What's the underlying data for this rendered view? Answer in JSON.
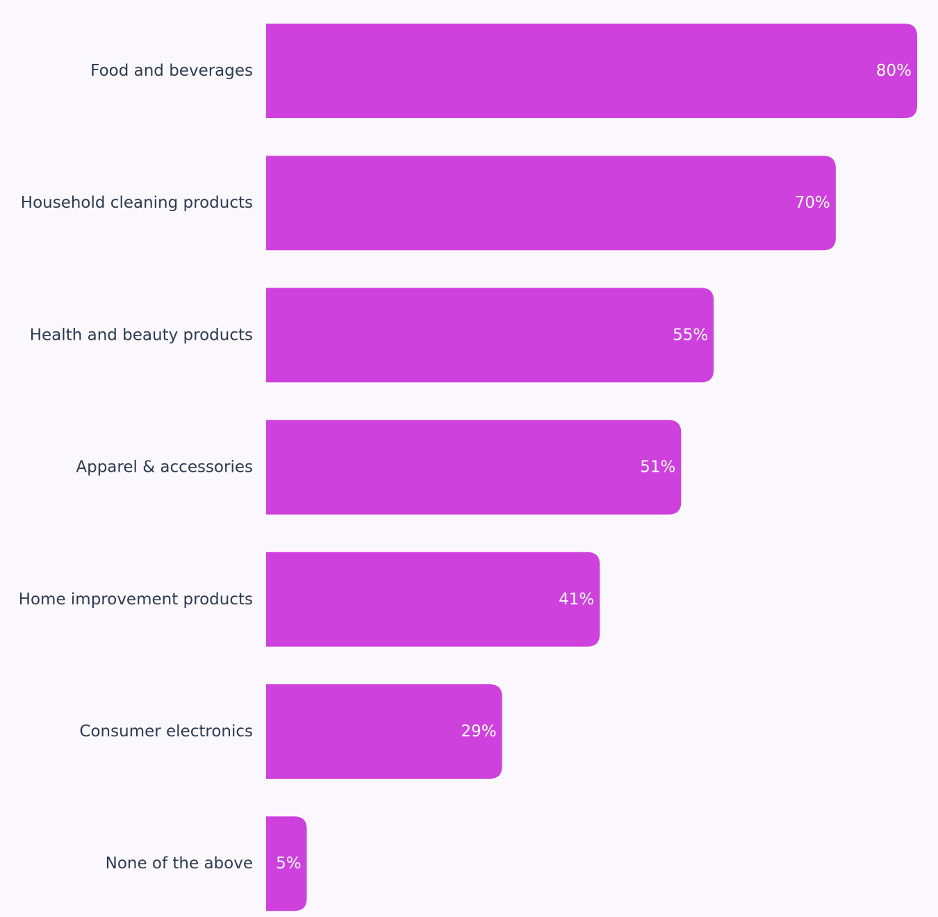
{
  "chart_data": {
    "type": "bar",
    "orientation": "horizontal",
    "categories": [
      "Food and beverages",
      "Household cleaning products",
      "Health and beauty products",
      "Apparel & accessories",
      "Home improvement products",
      "Consumer electronics",
      "None of the above"
    ],
    "values": [
      80,
      70,
      55,
      51,
      41,
      29,
      5
    ],
    "value_labels": [
      "80%",
      "70%",
      "55%",
      "51%",
      "41%",
      "29%",
      "5%"
    ],
    "xlim": [
      0,
      80
    ],
    "grid": false,
    "legend": "none",
    "bar_color": "#cf41dd",
    "label_color": "#2d3a4f",
    "value_label_color": "#ffffff",
    "background": "#fbf8fd"
  }
}
